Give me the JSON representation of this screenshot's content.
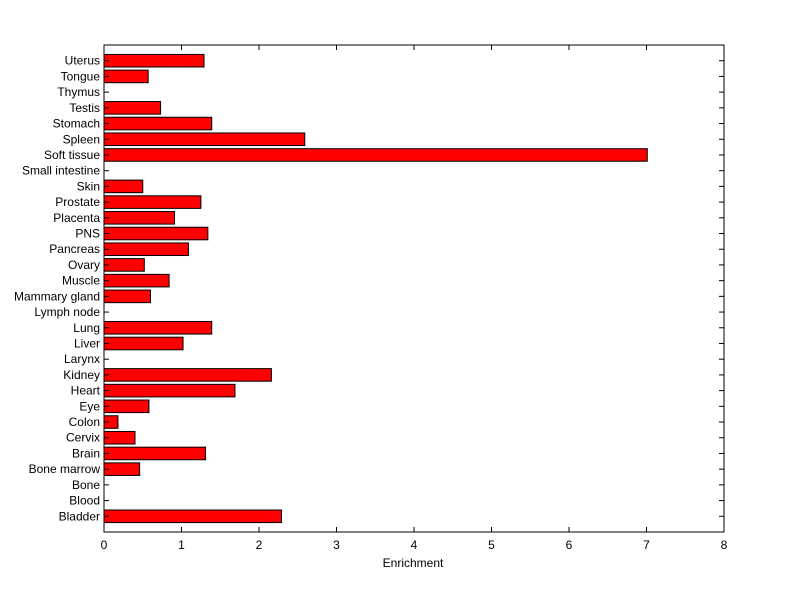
{
  "chart_data": {
    "type": "bar",
    "orientation": "horizontal",
    "categories": [
      "Bladder",
      "Blood",
      "Bone",
      "Bone marrow",
      "Brain",
      "Cervix",
      "Colon",
      "Eye",
      "Heart",
      "Kidney",
      "Larynx",
      "Liver",
      "Lung",
      "Lymph node",
      "Mammary gland",
      "Muscle",
      "Ovary",
      "Pancreas",
      "PNS",
      "Placenta",
      "Prostate",
      "Skin",
      "Small intestine",
      "Soft tissue",
      "Spleen",
      "Stomach",
      "Testis",
      "Thymus",
      "Tongue",
      "Uterus"
    ],
    "values": [
      2.29,
      0,
      0,
      0.46,
      1.31,
      0.4,
      0.18,
      0.58,
      1.69,
      2.16,
      0,
      1.02,
      1.39,
      0,
      0.6,
      0.84,
      0.52,
      1.09,
      1.34,
      0.91,
      1.25,
      0.5,
      0,
      7.01,
      2.59,
      1.39,
      0.73,
      0,
      0.57,
      1.29
    ],
    "xlabel": "Enrichment",
    "ylabel": "",
    "title": "",
    "xlim": [
      0,
      8
    ],
    "xticks": [
      "0",
      "1",
      "2",
      "3",
      "4",
      "5",
      "6",
      "7",
      "8"
    ],
    "bar_color": "#ff0000",
    "edge_color": "#000000",
    "grid": false,
    "legend": "none"
  }
}
